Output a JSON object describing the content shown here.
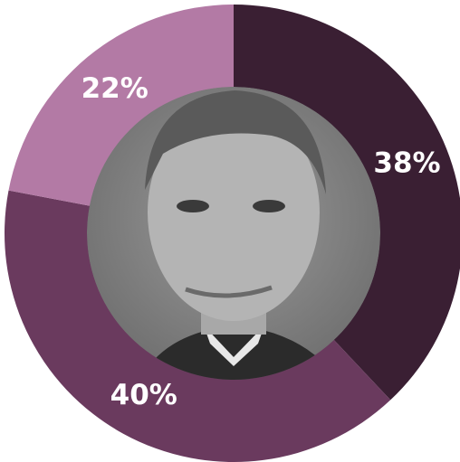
{
  "chart_data": {
    "type": "pie",
    "categories": [
      null,
      null,
      null
    ],
    "values": [
      38,
      40,
      22
    ],
    "value_labels": [
      "38%",
      "40%",
      "22%"
    ],
    "colors": [
      "#3a1f33",
      "#6a3a5e",
      "#b37aa5"
    ]
  }
}
